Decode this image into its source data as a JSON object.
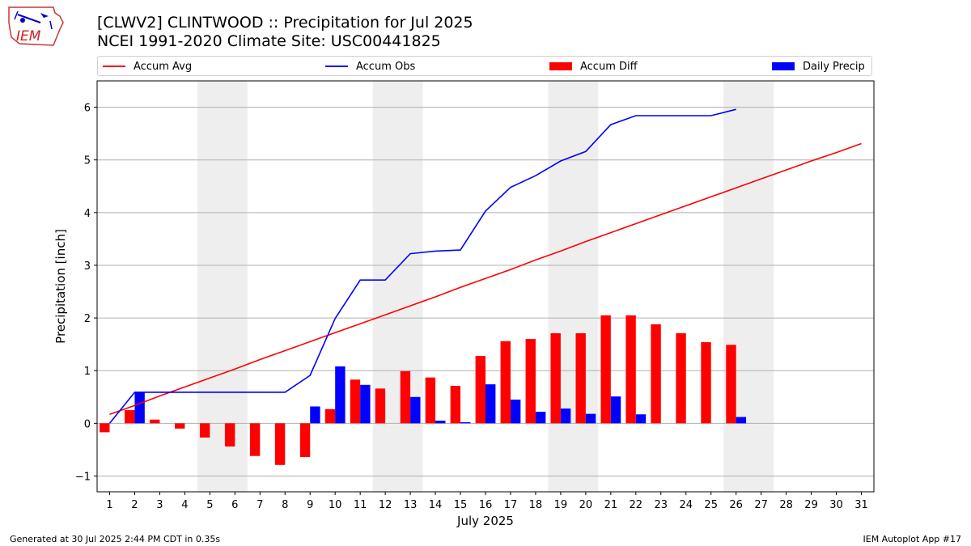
{
  "title_line1": "[CLWV2] CLINTWOOD :: Precipitation for Jul 2025",
  "title_line2": "NCEI 1991-2020 Climate Site: USC00441825",
  "logo_text": "IEM",
  "footer_left": "Generated at 30 Jul 2025 2:44 PM CDT in 0.35s",
  "footer_right": "IEM Autoplot App #17",
  "colors": {
    "avg": "#ff0000",
    "obs": "#0000ff",
    "diff": "#ff0000",
    "daily": "#0000ff",
    "weekend": "#eeeeee",
    "grid": "#b0b0b0"
  },
  "chart_data": {
    "type": "bar",
    "xlabel": "July 2025",
    "ylabel": "Precipitation [inch]",
    "xlim": [
      0.5,
      31.5
    ],
    "ylim": [
      -1.3,
      6.5
    ],
    "yticks": [
      -1,
      0,
      1,
      2,
      3,
      4,
      5,
      6
    ],
    "grid": "horizontal",
    "legend_placement": "top",
    "days": [
      1,
      2,
      3,
      4,
      5,
      6,
      7,
      8,
      9,
      10,
      11,
      12,
      13,
      14,
      15,
      16,
      17,
      18,
      19,
      20,
      21,
      22,
      23,
      24,
      25,
      26,
      27,
      28,
      29,
      30,
      31
    ],
    "shaded_days": [
      [
        5,
        6
      ],
      [
        12,
        13
      ],
      [
        19,
        20
      ],
      [
        26,
        27
      ]
    ],
    "series": [
      {
        "name": "Accum Avg",
        "kind": "line",
        "values": [
          0.17,
          0.34,
          0.52,
          0.69,
          0.86,
          1.03,
          1.21,
          1.38,
          1.55,
          1.72,
          1.89,
          2.06,
          2.23,
          2.4,
          2.58,
          2.75,
          2.92,
          3.1,
          3.27,
          3.45,
          3.62,
          3.79,
          3.96,
          4.13,
          4.3,
          4.47,
          4.64,
          4.81,
          4.98,
          5.14,
          5.31
        ]
      },
      {
        "name": "Accum Obs",
        "kind": "line",
        "values": [
          0.0,
          0.59,
          0.59,
          0.59,
          0.59,
          0.59,
          0.59,
          0.59,
          0.91,
          1.99,
          2.72,
          2.72,
          3.22,
          3.27,
          3.29,
          4.03,
          4.48,
          4.7,
          4.98,
          5.16,
          5.67,
          5.84,
          5.84,
          5.84,
          5.84,
          5.96
        ]
      },
      {
        "name": "Accum Diff",
        "kind": "bar",
        "values": [
          -0.17,
          0.25,
          0.07,
          -0.1,
          -0.27,
          -0.44,
          -0.62,
          -0.79,
          -0.64,
          0.27,
          0.83,
          0.66,
          0.99,
          0.87,
          0.71,
          1.28,
          1.56,
          1.6,
          1.71,
          1.71,
          2.05,
          2.05,
          1.88,
          1.71,
          1.54,
          1.49
        ]
      },
      {
        "name": "Daily Precip",
        "kind": "bar",
        "values": [
          0.0,
          0.59,
          0.0,
          0.0,
          0.0,
          0.0,
          0.0,
          0.0,
          0.32,
          1.08,
          0.73,
          0.0,
          0.5,
          0.05,
          0.02,
          0.74,
          0.45,
          0.22,
          0.28,
          0.18,
          0.51,
          0.17,
          0.0,
          0.0,
          0.0,
          0.12
        ]
      }
    ]
  }
}
